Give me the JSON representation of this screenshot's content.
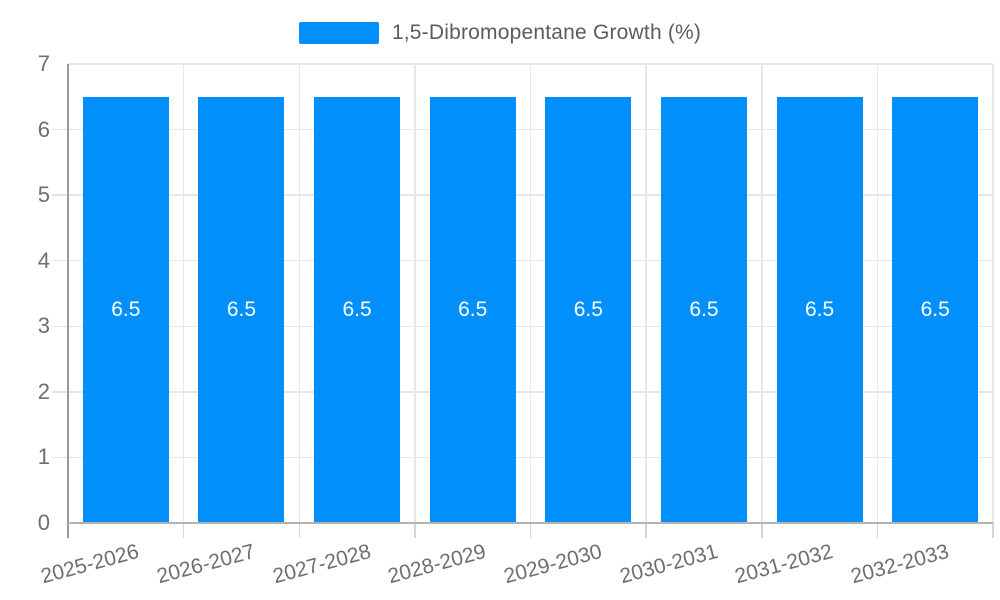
{
  "legend": {
    "label": "1,5-Dibromopentane Growth (%)",
    "swatch_color": "#008FFB"
  },
  "chart_data": {
    "type": "bar",
    "title": "",
    "categories": [
      "2025-2026",
      "2026-2027",
      "2027-2028",
      "2028-2029",
      "2029-2030",
      "2030-2031",
      "2031-2032",
      "2032-2033"
    ],
    "series": [
      {
        "name": "1,5-Dibromopentane Growth (%)",
        "values": [
          6.5,
          6.5,
          6.5,
          6.5,
          6.5,
          6.5,
          6.5,
          6.5
        ]
      }
    ],
    "data_labels": [
      "6.5",
      "6.5",
      "6.5",
      "6.5",
      "6.5",
      "6.5",
      "6.5",
      "6.5"
    ],
    "xlabel": "",
    "ylabel": "",
    "ylim": [
      0,
      7
    ],
    "yticks": [
      0,
      1,
      2,
      3,
      4,
      5,
      6,
      7
    ],
    "grid": true,
    "legend_position": "top",
    "bar_color": "#008FFB",
    "data_label_color": "#ffffff"
  },
  "colors": {
    "background": "#ffffff",
    "gridline": "#e7e7e7",
    "axis_line": "#9a9a9a",
    "baseline": "#b3b3b3",
    "tick_label": "#6e6e6e",
    "legend_text": "#595d60"
  }
}
